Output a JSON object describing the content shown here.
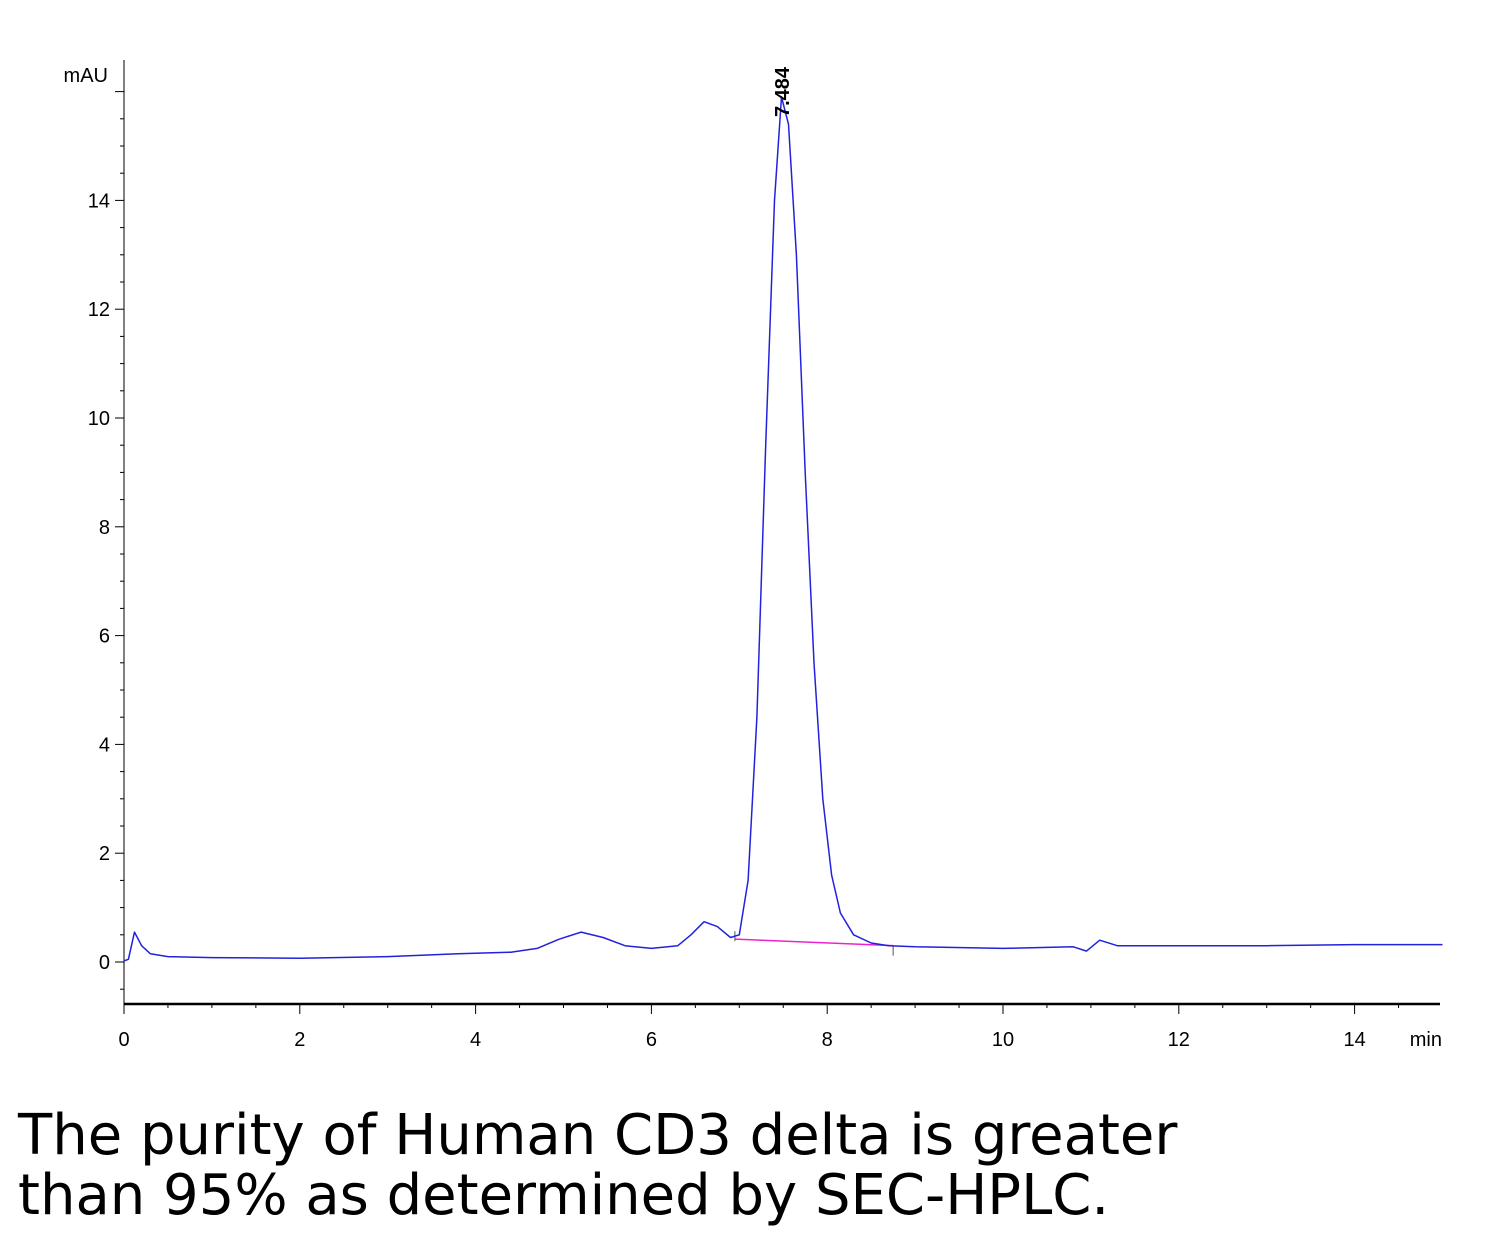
{
  "chart_data": {
    "type": "line",
    "title": "",
    "xlabel": "min",
    "ylabel": "mAU",
    "xlim": [
      0,
      15
    ],
    "ylim": [
      -0.8,
      16.5
    ],
    "x_ticks": [
      0,
      2,
      4,
      6,
      8,
      10,
      12,
      14
    ],
    "y_ticks": [
      0,
      2,
      4,
      6,
      8,
      10,
      12,
      14
    ],
    "grid": false,
    "legend": "none",
    "series_color": "#2222dd",
    "baseline_color": "#ee22cc",
    "series": [
      {
        "x": [
          0,
          0.05,
          0.12,
          0.2,
          0.3,
          0.5,
          1,
          2,
          3,
          3.8,
          4.4,
          4.7,
          4.95,
          5.2,
          5.45,
          5.7,
          6.0,
          6.3,
          6.45,
          6.6,
          6.75,
          6.9,
          7.0,
          7.1,
          7.2,
          7.3,
          7.4,
          7.48,
          7.56,
          7.65,
          7.75,
          7.85,
          7.95,
          8.05,
          8.15,
          8.3,
          8.5,
          8.7,
          9,
          10,
          10.8,
          10.95,
          11.1,
          11.3,
          12,
          13,
          14,
          15
        ],
        "y": [
          0.02,
          0.05,
          0.55,
          0.3,
          0.15,
          0.1,
          0.08,
          0.07,
          0.1,
          0.15,
          0.18,
          0.25,
          0.42,
          0.55,
          0.45,
          0.3,
          0.25,
          0.3,
          0.5,
          0.74,
          0.65,
          0.45,
          0.5,
          1.5,
          4.5,
          9.5,
          14.0,
          15.9,
          15.4,
          13.0,
          9.0,
          5.5,
          3.0,
          1.6,
          0.9,
          0.5,
          0.35,
          0.3,
          0.28,
          0.25,
          0.28,
          0.2,
          0.4,
          0.3,
          0.3,
          0.3,
          0.32,
          0.32
        ]
      }
    ],
    "baseline_segment": {
      "x": [
        6.95,
        8.75
      ],
      "y": [
        0.42,
        0.3
      ]
    },
    "annotations": [
      {
        "text": "7.484",
        "x": 7.484,
        "y": 15.9
      }
    ]
  },
  "caption": {
    "line1": "The purity of Human CD3 delta is greater",
    "line2": "than 95% as determined by SEC-HPLC."
  }
}
